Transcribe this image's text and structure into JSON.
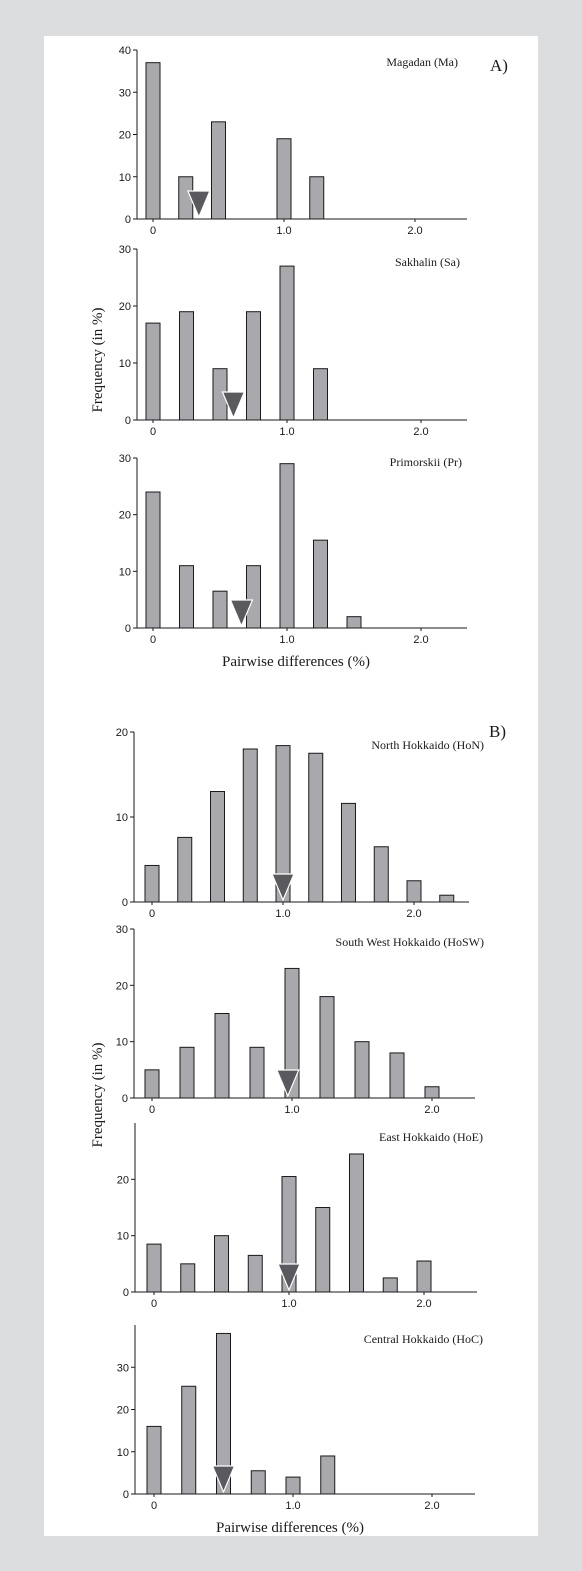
{
  "panel_labels": {
    "a": "A)",
    "b": "B)"
  },
  "axis_labels": {
    "y_a": "Frequency (in %)",
    "x_a": "Pairwise differences (%)",
    "y_b": "Frequency (in %)",
    "x_b": "Pairwise differences (%)"
  },
  "colors": {
    "bar_fill": "#a9a9ad",
    "mean_marker": "#5a5a5e",
    "background": "#dcdddf",
    "panel": "#ffffff"
  },
  "chart_data": [
    {
      "type": "bar",
      "title": "Magadan (Ma)",
      "xlabel": "Pairwise differences (%)",
      "ylabel": "Frequency (in %)",
      "x": [
        0,
        0.25,
        0.5,
        1.0,
        1.25
      ],
      "values": [
        37,
        10,
        23,
        19,
        10
      ],
      "mean": 0.35,
      "ylim": [
        0,
        40
      ],
      "yticks": [
        "0",
        "10",
        "20",
        "30",
        "40"
      ],
      "xticks": [
        "0",
        "1.0",
        "2.0"
      ]
    },
    {
      "type": "bar",
      "title": "Sakhalin (Sa)",
      "xlabel": "Pairwise differences (%)",
      "ylabel": "Frequency (in %)",
      "x": [
        0,
        0.25,
        0.5,
        0.75,
        1.0,
        1.25
      ],
      "values": [
        17,
        19,
        9,
        19,
        27,
        9
      ],
      "mean": 0.6,
      "ylim": [
        0,
        30
      ],
      "yticks": [
        "0",
        "10",
        "20",
        "30"
      ],
      "xticks": [
        "0",
        "1.0",
        "2.0"
      ]
    },
    {
      "type": "bar",
      "title": "Primorskii (Pr)",
      "xlabel": "Pairwise differences (%)",
      "ylabel": "Frequency (in %)",
      "x": [
        0,
        0.25,
        0.5,
        0.75,
        1.0,
        1.25,
        1.5
      ],
      "values": [
        24,
        11,
        6.5,
        11,
        29,
        15.5,
        2
      ],
      "mean": 0.66,
      "ylim": [
        0,
        30
      ],
      "yticks": [
        "0",
        "10",
        "20",
        "30"
      ],
      "xticks": [
        "0",
        "1.0",
        "2.0"
      ]
    },
    {
      "type": "bar",
      "title": "North Hokkaido (HoN)",
      "xlabel": "Pairwise differences (%)",
      "ylabel": "Frequency (in %)",
      "x": [
        0,
        0.25,
        0.5,
        0.75,
        1.0,
        1.25,
        1.5,
        1.75,
        2.0,
        2.25
      ],
      "values": [
        4.3,
        7.6,
        13,
        18,
        18.4,
        17.5,
        11.6,
        6.5,
        2.5,
        0.8
      ],
      "mean": 1.0,
      "ylim": [
        0,
        20
      ],
      "yticks": [
        "0",
        "10",
        "20"
      ],
      "xticks": [
        "0",
        "1.0",
        "2.0"
      ]
    },
    {
      "type": "bar",
      "title": "South West Hokkaido (HoSW)",
      "xlabel": "Pairwise differences (%)",
      "ylabel": "Frequency (in %)",
      "x": [
        0,
        0.25,
        0.5,
        0.75,
        1.0,
        1.25,
        1.5,
        1.75,
        2.0
      ],
      "values": [
        5,
        9,
        15,
        9,
        23,
        18,
        10,
        8,
        2
      ],
      "mean": 0.97,
      "ylim": [
        0,
        30
      ],
      "yticks": [
        "0",
        "10",
        "20",
        "30"
      ],
      "xticks": [
        "0",
        "1.0",
        "2.0"
      ]
    },
    {
      "type": "bar",
      "title": "East Hokkaido (HoE)",
      "xlabel": "Pairwise differences (%)",
      "ylabel": "Frequency (in %)",
      "x": [
        0,
        0.25,
        0.5,
        0.75,
        1.0,
        1.25,
        1.5,
        1.75,
        2.0
      ],
      "values": [
        8.5,
        5,
        10,
        6.5,
        20.5,
        15,
        24.5,
        2.5,
        5.5
      ],
      "mean": 1.0,
      "ylim": [
        0,
        30
      ],
      "yticks": [
        "0",
        "10",
        "20"
      ],
      "xticks": [
        "0",
        "1.0",
        "2.0"
      ]
    },
    {
      "type": "bar",
      "title": "Central Hokkaido (HoC)",
      "xlabel": "Pairwise differences (%)",
      "ylabel": "Frequency (in %)",
      "x": [
        0,
        0.25,
        0.5,
        0.75,
        1.0,
        1.25
      ],
      "values": [
        16,
        25.5,
        38,
        5.5,
        4,
        9
      ],
      "mean": 0.5,
      "ylim": [
        0,
        40
      ],
      "yticks": [
        "0",
        "10",
        "20",
        "30"
      ],
      "xticks": [
        "0",
        "1.0",
        "2.0"
      ]
    }
  ]
}
